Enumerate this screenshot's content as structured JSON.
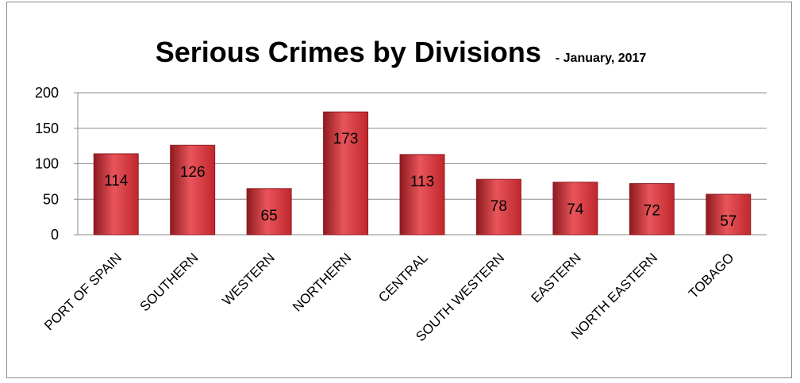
{
  "chart_data": {
    "type": "bar",
    "title": "Serious Crimes by Divisions",
    "subtitle": "- January, 2017",
    "xlabel": "",
    "ylabel": "",
    "ylim": [
      0,
      200
    ],
    "yticks": [
      0,
      50,
      100,
      150,
      200
    ],
    "grid": true,
    "categories": [
      "PORT OF SPAIN",
      "SOUTHERN",
      "WESTERN",
      "NORTHERN",
      "CENTRAL",
      "SOUTH WESTERN",
      "EASTERN",
      "NORTH EASTERN",
      "TOBAGO"
    ],
    "values": [
      114,
      126,
      65,
      173,
      113,
      78,
      74,
      72,
      57
    ],
    "colors": {
      "bar": "#c0272d",
      "bar_light": "#e8555a",
      "bar_dark": "#8e1a1f"
    }
  }
}
